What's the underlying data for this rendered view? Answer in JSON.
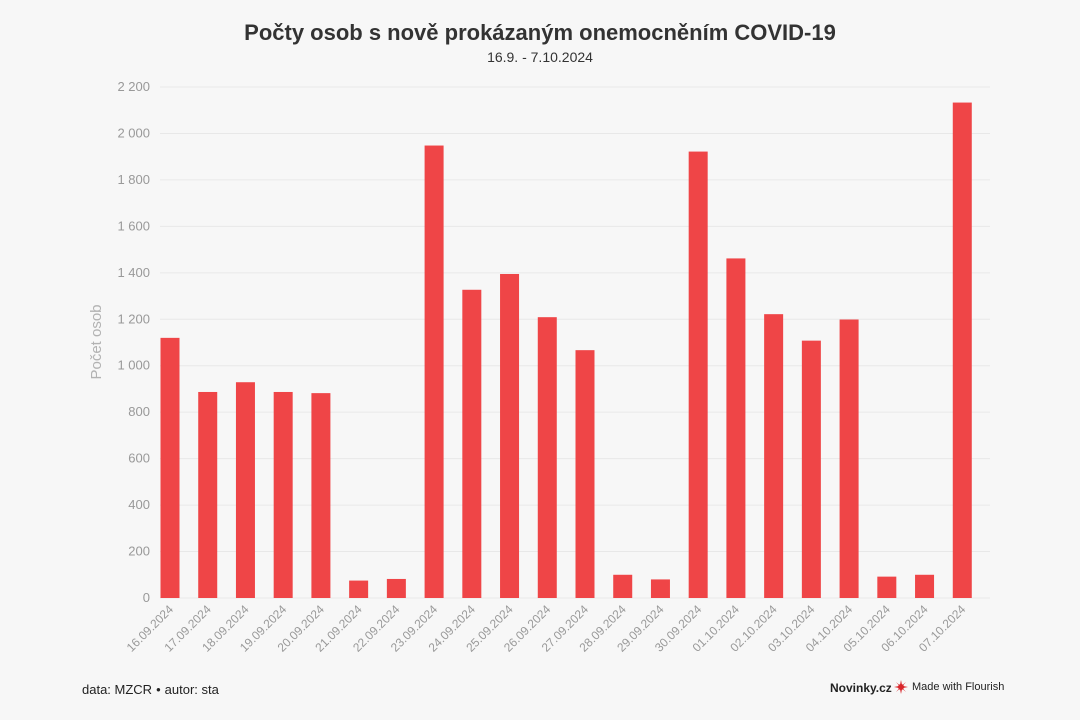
{
  "header": {
    "title": "Počty osob s nově prokázaným onemocněním COVID-19",
    "subtitle": "16.9. - 7.10.2024"
  },
  "chart_data": {
    "type": "bar",
    "ylabel": "Počet osob",
    "ylim": [
      0,
      2200
    ],
    "yticks": [
      "0",
      "200",
      "400",
      "600",
      "800",
      "1 000",
      "1 200",
      "1 400",
      "1 600",
      "1 800",
      "2 000",
      "2 200"
    ],
    "grid": true,
    "bar_color": "#ef4547",
    "categories": [
      "16.09.2024",
      "17.09.2024",
      "18.09.2024",
      "19.09.2024",
      "20.09.2024",
      "21.09.2024",
      "22.09.2024",
      "23.09.2024",
      "24.09.2024",
      "25.09.2024",
      "26.09.2024",
      "27.09.2024",
      "28.09.2024",
      "29.09.2024",
      "30.09.2024",
      "01.10.2024",
      "02.10.2024",
      "03.10.2024",
      "04.10.2024",
      "05.10.2024",
      "06.10.2024",
      "07.10.2024"
    ],
    "values": [
      1120,
      887,
      929,
      887,
      882,
      75,
      82,
      1948,
      1327,
      1395,
      1209,
      1067,
      100,
      80,
      1922,
      1462,
      1222,
      1108,
      1199,
      92,
      100,
      2133
    ]
  },
  "footer": {
    "source_prefix": "data: MZCR",
    "separator": "•",
    "author": "autor: sta",
    "brand": "Novinky.cz",
    "flourish": "Made with Flourish"
  }
}
